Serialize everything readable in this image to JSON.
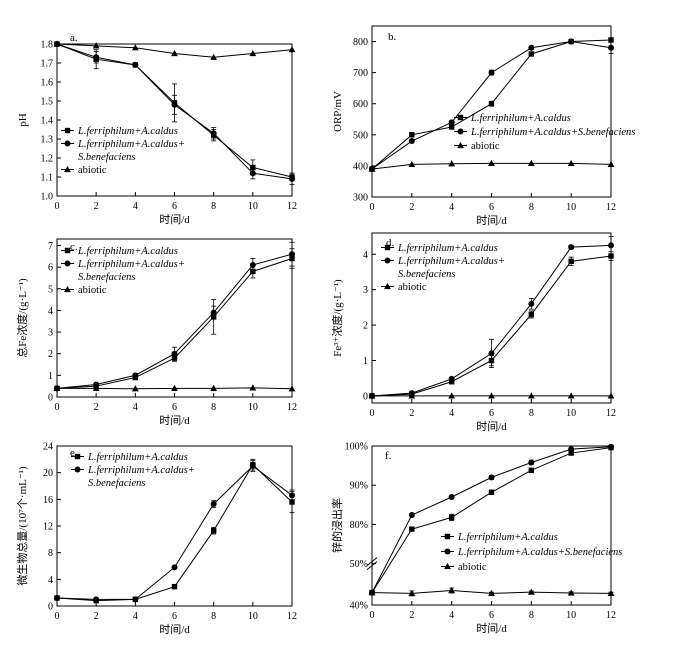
{
  "chart_data": [
    {
      "id": "a",
      "type": "line",
      "panel_label": "a.",
      "xlabel": "时间/d",
      "ylabel": "pH",
      "xlim": [
        0,
        12
      ],
      "ylim": [
        1.0,
        1.8
      ],
      "xticks": [
        "0",
        "2",
        "4",
        "6",
        "8",
        "10",
        "12"
      ],
      "yticks": [
        "1.0",
        "1.1",
        "1.2",
        "1.3",
        "1.4",
        "1.5",
        "1.6",
        "1.7",
        "1.8"
      ],
      "legend_position": "bottom-left",
      "series": [
        {
          "name": "L.ferriphilum+A.caldus",
          "marker": "square",
          "legend_lines": [
            "L.ferriphilum+A.caldus"
          ],
          "italic": true,
          "x": [
            0,
            2,
            4,
            6,
            8,
            10,
            12
          ],
          "y": [
            1.8,
            1.72,
            1.69,
            1.49,
            1.32,
            1.15,
            1.1
          ],
          "err": [
            0,
            0.05,
            0,
            0.1,
            0.03,
            0.04,
            0.02
          ]
        },
        {
          "name": "L.ferriphilum+A.caldus+S.benefaciens",
          "marker": "circle",
          "legend_lines": [
            "L.ferriphilum+A.caldus+",
            "S.benefaciens"
          ],
          "italic": true,
          "x": [
            0,
            2,
            4,
            6,
            8,
            10,
            12
          ],
          "y": [
            1.8,
            1.73,
            1.69,
            1.48,
            1.33,
            1.12,
            1.09
          ],
          "err": [
            0,
            0.03,
            0,
            0.05,
            0.03,
            0.03,
            0.03
          ]
        },
        {
          "name": "abiotic",
          "marker": "triangle",
          "legend_lines": [
            "abiotic"
          ],
          "italic": false,
          "x": [
            0,
            2,
            4,
            6,
            8,
            10,
            12
          ],
          "y": [
            1.8,
            1.79,
            1.78,
            1.75,
            1.73,
            1.75,
            1.77
          ],
          "err": [
            0,
            0,
            0,
            0,
            0,
            0,
            0
          ]
        }
      ]
    },
    {
      "id": "b",
      "type": "line",
      "panel_label": "b.",
      "xlabel": "时间/d",
      "ylabel": "ORP/mV",
      "xlim": [
        0,
        12
      ],
      "ylim": [
        300,
        850
      ],
      "xticks": [
        "0",
        "2",
        "4",
        "6",
        "8",
        "10",
        "12"
      ],
      "yticks": [
        "300",
        "400",
        "500",
        "600",
        "700",
        "800"
      ],
      "legend_position": "center-right",
      "series": [
        {
          "name": "L.ferriphilum+A.caldus",
          "marker": "square",
          "legend_lines": [
            "L.ferriphilum+A.caldus"
          ],
          "italic": true,
          "x": [
            0,
            2,
            4,
            6,
            8,
            10,
            12
          ],
          "y": [
            390,
            500,
            525,
            600,
            760,
            800,
            805
          ],
          "err": [
            0,
            5,
            5,
            8,
            5,
            5,
            5
          ]
        },
        {
          "name": "L.ferriphilum+A.caldus+S.benefaciens",
          "marker": "circle",
          "legend_lines": [
            "L.ferriphilum+A.caldus+S.benefaciens"
          ],
          "italic": true,
          "x": [
            0,
            2,
            4,
            6,
            8,
            10,
            12
          ],
          "y": [
            390,
            480,
            540,
            700,
            780,
            800,
            780
          ],
          "err": [
            0,
            5,
            5,
            8,
            5,
            5,
            18
          ]
        },
        {
          "name": "abiotic",
          "marker": "triangle",
          "legend_lines": [
            "abiotic"
          ],
          "italic": false,
          "x": [
            0,
            2,
            4,
            6,
            8,
            10,
            12
          ],
          "y": [
            390,
            405,
            407,
            408,
            408,
            408,
            405
          ],
          "err": [
            0,
            0,
            0,
            0,
            0,
            0,
            0
          ]
        }
      ]
    },
    {
      "id": "c",
      "type": "line",
      "panel_label": "c.",
      "xlabel": "时间/d",
      "ylabel": "总Fe浓度/(g·L⁻¹)",
      "xlim": [
        0,
        12
      ],
      "ylim": [
        0,
        7.3
      ],
      "xticks": [
        "0",
        "2",
        "4",
        "6",
        "8",
        "10",
        "12"
      ],
      "yticks": [
        "0",
        "1",
        "2",
        "3",
        "4",
        "5",
        "6",
        "7"
      ],
      "legend_position": "top-left",
      "series": [
        {
          "name": "L.ferriphilum+A.caldus",
          "marker": "square",
          "legend_lines": [
            "L.ferriphilum+A.caldus"
          ],
          "italic": true,
          "x": [
            0,
            2,
            4,
            6,
            8,
            10,
            12
          ],
          "y": [
            0.4,
            0.5,
            0.9,
            1.8,
            3.7,
            5.8,
            6.4
          ],
          "err": [
            0,
            0.05,
            0.08,
            0.15,
            0.8,
            0.3,
            0.45
          ]
        },
        {
          "name": "L.ferriphilum+A.caldus+S.benefaciens",
          "marker": "circle",
          "legend_lines": [
            "L.ferriphilum+A.caldus+",
            "S.benefaciens"
          ],
          "italic": true,
          "x": [
            0,
            2,
            4,
            6,
            8,
            10,
            12
          ],
          "y": [
            0.4,
            0.58,
            1.0,
            2.0,
            3.9,
            6.1,
            6.6
          ],
          "err": [
            0,
            0.05,
            0.08,
            0.3,
            0.3,
            0.3,
            0.55
          ]
        },
        {
          "name": "abiotic",
          "marker": "triangle",
          "legend_lines": [
            "abiotic"
          ],
          "italic": false,
          "x": [
            0,
            2,
            4,
            6,
            8,
            10,
            12
          ],
          "y": [
            0.4,
            0.4,
            0.38,
            0.4,
            0.4,
            0.42,
            0.38
          ],
          "err": [
            0,
            0,
            0,
            0,
            0,
            0,
            0
          ]
        }
      ]
    },
    {
      "id": "d",
      "type": "line",
      "panel_label": "d.",
      "xlabel": "时间/d",
      "ylabel": "Fe³⁺浓度/(g·L⁻¹)",
      "xlim": [
        0,
        12
      ],
      "ylim": [
        -0.2,
        4.6
      ],
      "xticks": [
        "0",
        "2",
        "4",
        "6",
        "8",
        "10",
        "12"
      ],
      "yticks": [
        "0",
        "1",
        "2",
        "3",
        "4"
      ],
      "legend_position": "top-left",
      "series": [
        {
          "name": "L.ferriphilum+A.caldus",
          "marker": "square",
          "legend_lines": [
            "L.ferriphilum+A.caldus"
          ],
          "italic": true,
          "x": [
            0,
            2,
            4,
            6,
            8,
            10,
            12
          ],
          "y": [
            0,
            0.05,
            0.4,
            1.0,
            2.3,
            3.8,
            3.95
          ],
          "err": [
            0,
            0.03,
            0.05,
            0.15,
            0.1,
            0.12,
            0.12
          ]
        },
        {
          "name": "L.ferriphilum+A.caldus+S.benefaciens",
          "marker": "circle",
          "legend_lines": [
            "L.ferriphilum+A.caldus+",
            "S.benefaciens"
          ],
          "italic": true,
          "x": [
            0,
            2,
            4,
            6,
            8,
            10,
            12
          ],
          "y": [
            0,
            0.08,
            0.48,
            1.2,
            2.6,
            4.2,
            4.25
          ],
          "err": [
            0,
            0.03,
            0.05,
            0.4,
            0.15,
            0.05,
            0.25
          ]
        },
        {
          "name": "abiotic",
          "marker": "triangle",
          "legend_lines": [
            "abiotic"
          ],
          "italic": false,
          "x": [
            0,
            2,
            4,
            6,
            8,
            10,
            12
          ],
          "y": [
            0,
            0,
            0,
            0,
            0,
            0,
            0
          ],
          "err": [
            0,
            0,
            0,
            0,
            0,
            0,
            0
          ]
        }
      ]
    },
    {
      "id": "e",
      "type": "line",
      "panel_label": "e.",
      "xlabel": "时间/d",
      "ylabel": "微生物总量/(10⁷个·mL⁻¹)",
      "xlim": [
        0,
        12
      ],
      "ylim": [
        0,
        24
      ],
      "xticks": [
        "0",
        "2",
        "4",
        "6",
        "8",
        "10",
        "12"
      ],
      "yticks": [
        "0",
        "4",
        "8",
        "12",
        "16",
        "20",
        "24"
      ],
      "legend_position": "top-right",
      "series": [
        {
          "name": "L.ferriphilum+A.caldus",
          "marker": "square",
          "legend_lines": [
            "L.ferriphilum+A.caldus"
          ],
          "italic": true,
          "x": [
            0,
            2,
            4,
            6,
            8,
            10,
            12
          ],
          "y": [
            1.2,
            0.8,
            1.0,
            2.9,
            11.3,
            21.2,
            15.6
          ],
          "err": [
            0,
            0,
            0,
            0,
            0.5,
            0.8,
            1.6
          ]
        },
        {
          "name": "L.ferriphilum+A.caldus+S.benefaciens",
          "marker": "circle",
          "legend_lines": [
            "L.ferriphilum+A.caldus+",
            "S.benefaciens"
          ],
          "italic": true,
          "x": [
            0,
            2,
            4,
            6,
            8,
            10,
            12
          ],
          "y": [
            1.2,
            1.0,
            1.0,
            5.8,
            15.3,
            21.0,
            16.6
          ],
          "err": [
            0,
            0,
            0,
            0,
            0.5,
            0.8,
            0.8
          ]
        }
      ]
    },
    {
      "id": "f",
      "type": "line",
      "panel_label": "f.",
      "xlabel": "时间/d",
      "ylabel": "锌的浸出率",
      "xlim": [
        0,
        12
      ],
      "axis_break": true,
      "ylim_lower": [
        40,
        50
      ],
      "ylim_upper": [
        70,
        100
      ],
      "xticks": [
        "0",
        "2",
        "4",
        "6",
        "8",
        "10",
        "12"
      ],
      "yticks": [
        "40%",
        "50%",
        "80%",
        "90%",
        "100%"
      ],
      "legend_position": "bottom-right",
      "series": [
        {
          "name": "L.ferriphilum+A.caldus",
          "marker": "square",
          "legend_lines": [
            "L.ferriphilum+A.caldus"
          ],
          "italic": true,
          "x": [
            0,
            2,
            4,
            6,
            8,
            10,
            12
          ],
          "y": [
            43,
            78.8,
            81.8,
            88.2,
            93.8,
            98.2,
            99.6
          ],
          "err": [
            0,
            0.3,
            0.8,
            0.3,
            0.3,
            0.3,
            0.2
          ]
        },
        {
          "name": "L.ferriphilum+A.caldus+S.benefaciens",
          "marker": "circle",
          "legend_lines": [
            "L.ferriphilum+A.caldus+S.benefaciens"
          ],
          "italic": true,
          "x": [
            0,
            2,
            4,
            6,
            8,
            10,
            12
          ],
          "y": [
            43,
            82.4,
            87,
            92,
            95.8,
            99.2,
            99.8
          ],
          "err": [
            0,
            0.3,
            0.4,
            0.5,
            0.6,
            0.3,
            0.2
          ]
        },
        {
          "name": "abiotic",
          "marker": "triangle",
          "legend_lines": [
            "abiotic"
          ],
          "italic": false,
          "x": [
            0,
            2,
            4,
            6,
            8,
            10,
            12
          ],
          "y": [
            43,
            42.8,
            43.5,
            42.8,
            43.1,
            42.9,
            42.8
          ],
          "err": [
            0,
            0.6,
            0.6,
            0.3,
            0.3,
            0.3,
            0.3
          ]
        }
      ]
    }
  ]
}
